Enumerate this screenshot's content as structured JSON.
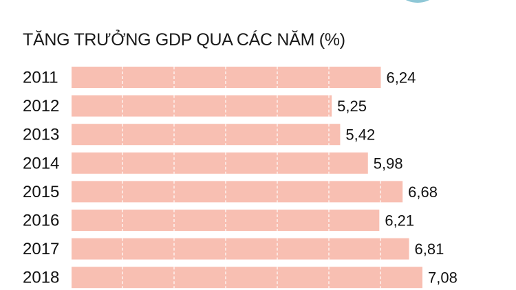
{
  "chart_data": {
    "type": "bar",
    "orientation": "horizontal",
    "title": "TĂNG TRƯỞNG GDP QUA CÁC NĂM (%)",
    "categories": [
      "2011",
      "2012",
      "2013",
      "2014",
      "2015",
      "2016",
      "2017",
      "2018"
    ],
    "values": [
      6.24,
      5.25,
      5.42,
      5.98,
      6.68,
      6.21,
      6.81,
      7.08
    ],
    "value_labels": [
      "6,24",
      "5,25",
      "5,42",
      "5,98",
      "6,68",
      "6,21",
      "6,81",
      "7,08"
    ],
    "xlabel": "",
    "ylabel": "",
    "xlim": [
      0,
      7.08
    ],
    "grid": true,
    "legend": "none",
    "colors": {
      "bar": "#f8bfb2",
      "grid": "#ffffff",
      "text": "#111111",
      "accent": "#8ec7d6"
    }
  }
}
